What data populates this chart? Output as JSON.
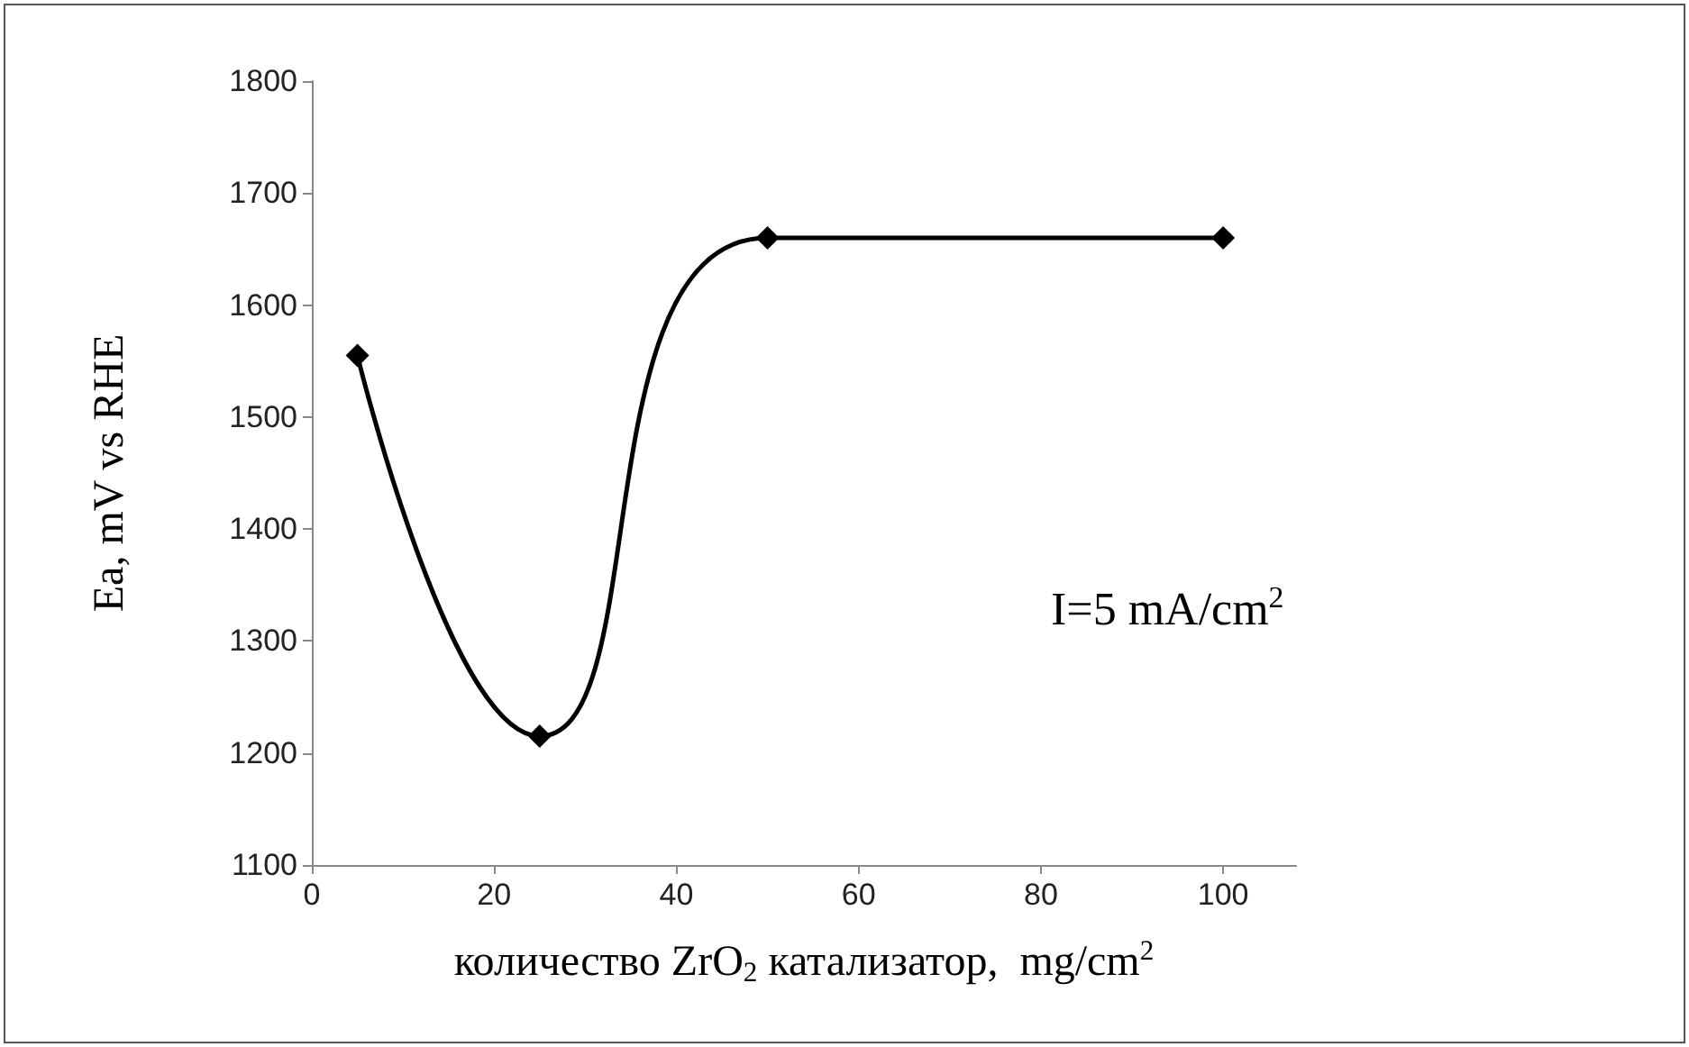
{
  "chart_data": {
    "type": "line",
    "xlabel": "количество ZrO$_{2}$ катализатор,  mg/cm$^{2}$",
    "ylabel": "Ea, mV vs RHE",
    "annotations": [
      "I=5 mA/cm$^{2}$"
    ],
    "x": [
      5,
      25,
      50,
      100
    ],
    "series": [
      {
        "color": "#000000",
        "values": [
          1555,
          1215,
          1660,
          1660
        ]
      }
    ],
    "xlim": [
      0,
      108
    ],
    "xticks": [
      0,
      20,
      40,
      60,
      80,
      100
    ],
    "ylim": [
      1100,
      1800
    ],
    "yticks": [
      1100,
      1200,
      1300,
      1400,
      1500,
      1600,
      1700,
      1800
    ],
    "grid": false,
    "marker": "diamond",
    "line_style": "solid"
  }
}
